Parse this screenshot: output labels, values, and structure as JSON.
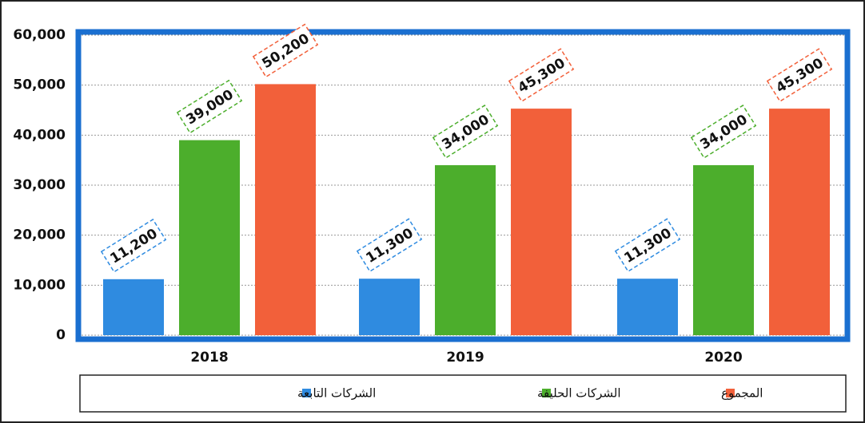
{
  "chart_data": {
    "type": "bar",
    "categories": [
      "2018",
      "2019",
      "2020"
    ],
    "series": [
      {
        "name": "الشركات التابعة",
        "color": "#2f8be0",
        "values": [
          11200,
          11300,
          11300
        ],
        "value_labels": [
          "11,200",
          "11,300",
          "11,300"
        ]
      },
      {
        "name": "الشركات الحليفة",
        "color": "#4cae2c",
        "values": [
          39000,
          34000,
          34000
        ],
        "value_labels": [
          "39,000",
          "34,000",
          "34,000"
        ]
      },
      {
        "name": "المجموع",
        "color": "#f2603a",
        "values": [
          50200,
          45300,
          45300
        ],
        "value_labels": [
          "50,200",
          "45,300",
          "45,300"
        ]
      }
    ],
    "ylim": [
      0,
      60000
    ],
    "yticks": [
      0,
      {
        "value": 10000,
        "label": "10,000"
      },
      {
        "value": 20000,
        "label": "20,000"
      },
      {
        "value": 30000,
        "label": "30,000"
      },
      {
        "value": 40000,
        "label": "40,000"
      },
      {
        "value": 50000,
        "label": "50,000"
      },
      {
        "value": 60000,
        "label": "60,000"
      }
    ],
    "grid": true
  }
}
